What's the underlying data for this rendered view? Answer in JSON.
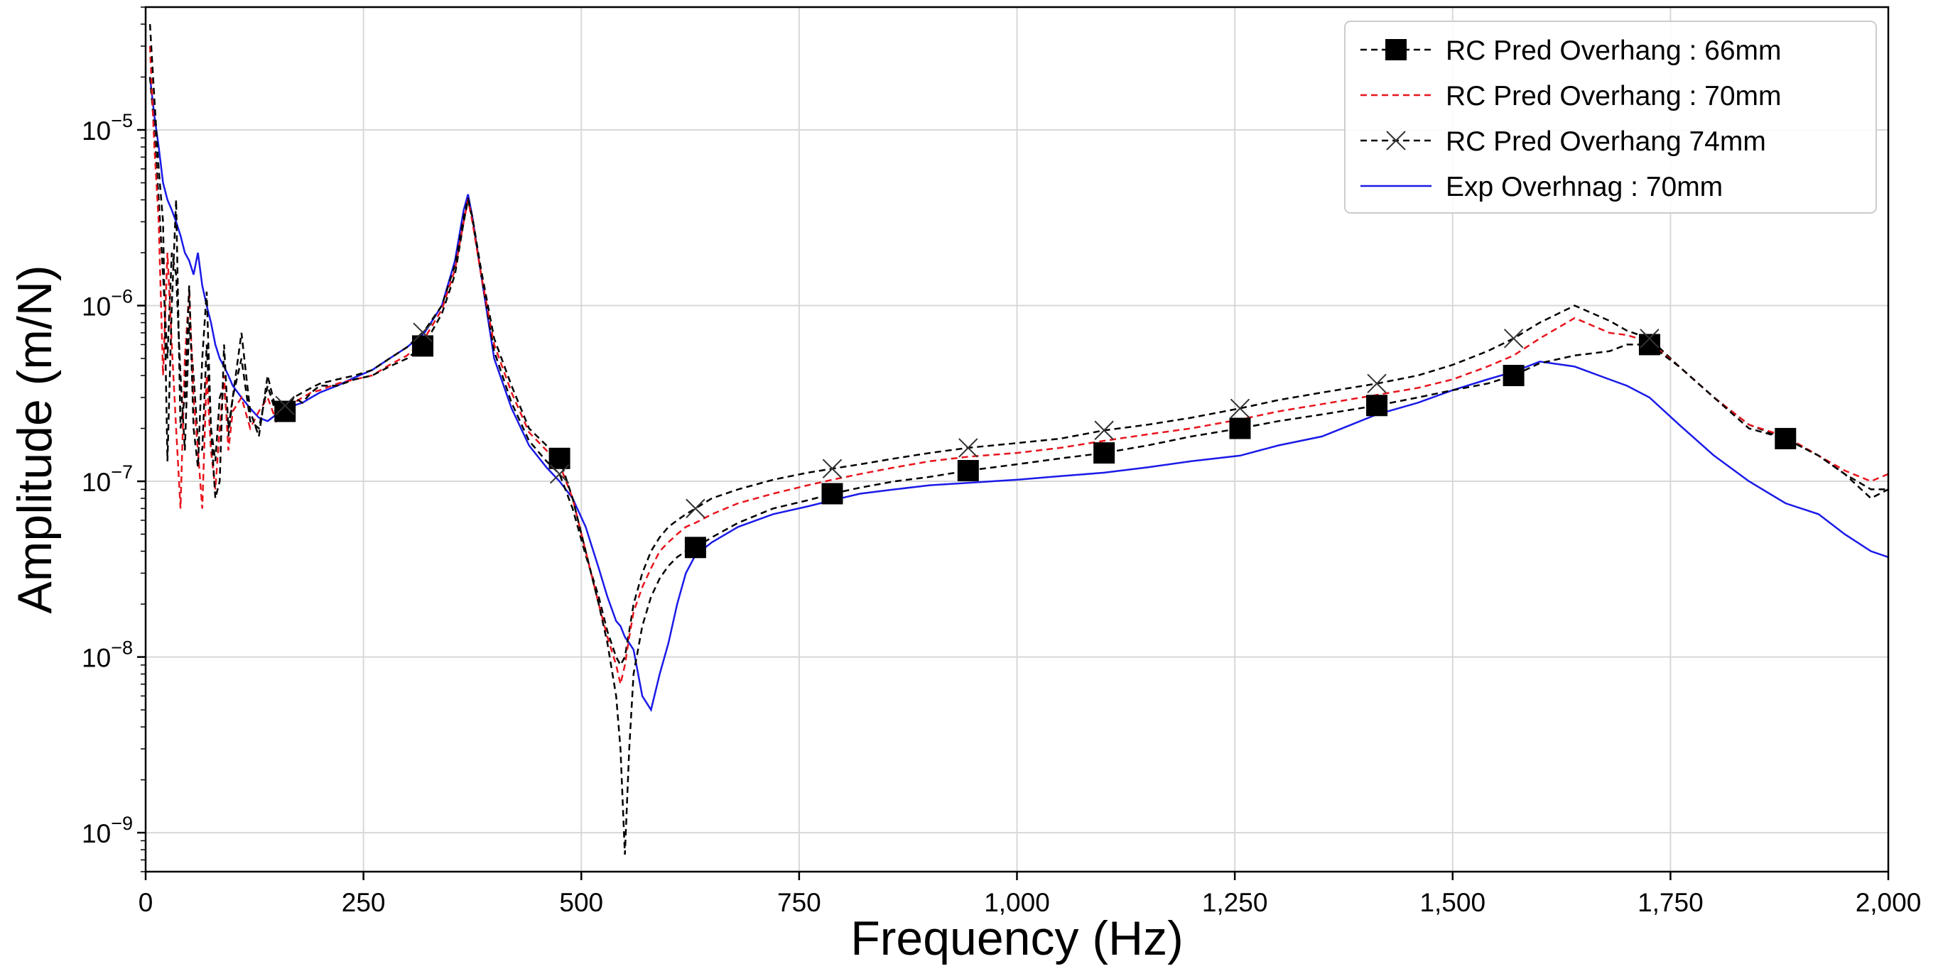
{
  "chart_data": {
    "type": "line",
    "xlabel": "Frequency (Hz)",
    "ylabel": "Amplitude (m/N)",
    "xlim": [
      0,
      2000
    ],
    "ylim": [
      6e-10,
      5e-05
    ],
    "yscale": "log",
    "grid": true,
    "legend_position": "top-right",
    "x_ticks": [
      {
        "value": 0,
        "label": "0"
      },
      {
        "value": 250,
        "label": "250"
      },
      {
        "value": 500,
        "label": "500"
      },
      {
        "value": 750,
        "label": "750"
      },
      {
        "value": 1000,
        "label": "1,000"
      },
      {
        "value": 1250,
        "label": "1,250"
      },
      {
        "value": 1500,
        "label": "1,500"
      },
      {
        "value": 1750,
        "label": "1,750"
      },
      {
        "value": 2000,
        "label": "2,000"
      }
    ],
    "y_ticks": [
      {
        "value": 1e-09,
        "base": "10",
        "exp": "−9"
      },
      {
        "value": 1e-08,
        "base": "10",
        "exp": "−8"
      },
      {
        "value": 1e-07,
        "base": "10",
        "exp": "−7"
      },
      {
        "value": 1e-06,
        "base": "10",
        "exp": "−6"
      },
      {
        "value": 1e-05,
        "base": "10",
        "exp": "−5"
      }
    ],
    "series": [
      {
        "name": "RC Pred Overhang : 66mm",
        "color": "#000000",
        "line_style": "dashed",
        "marker": "square",
        "markers_x": [
          160,
          318,
          475,
          631,
          788,
          944,
          1100,
          1256,
          1413,
          1570,
          1726,
          1882
        ],
        "x": [
          5,
          10,
          15,
          20,
          25,
          30,
          35,
          40,
          45,
          50,
          55,
          60,
          65,
          70,
          75,
          80,
          85,
          90,
          95,
          100,
          110,
          120,
          130,
          140,
          150,
          160,
          170,
          180,
          190,
          200,
          220,
          240,
          260,
          280,
          300,
          320,
          340,
          355,
          365,
          370,
          375,
          385,
          400,
          420,
          440,
          460,
          475,
          490,
          505,
          520,
          530,
          540,
          545,
          550,
          555,
          560,
          570,
          580,
          590,
          600,
          610,
          620,
          631,
          650,
          680,
          720,
          760,
          788,
          820,
          860,
          900,
          944,
          1000,
          1050,
          1100,
          1150,
          1200,
          1256,
          1300,
          1350,
          1413,
          1460,
          1500,
          1540,
          1570,
          1600,
          1640,
          1680,
          1700,
          1726,
          1760,
          1800,
          1840,
          1882,
          1920,
          1950,
          1980,
          2000
        ],
        "y": [
          4e-05,
          1.5e-05,
          6e-06,
          3e-06,
          1.3e-07,
          1e-06,
          4e-06,
          2e-07,
          3e-07,
          1.3e-06,
          2e-07,
          1.2e-07,
          5e-07,
          1.2e-06,
          2e-07,
          8e-08,
          1e-07,
          6e-07,
          2e-07,
          3e-07,
          7e-07,
          2.5e-07,
          1.8e-07,
          4e-07,
          2.5e-07,
          2.5e-07,
          3e-07,
          2.8e-07,
          3.2e-07,
          3.5e-07,
          3.5e-07,
          3.8e-07,
          4e-07,
          4.5e-07,
          5e-07,
          6e-07,
          9e-07,
          1.5e-06,
          3e-06,
          4e-06,
          3.2e-06,
          1.6e-06,
          6.5e-07,
          3.5e-07,
          2e-07,
          1.6e-07,
          1.35e-07,
          8e-08,
          4e-08,
          2e-08,
          1.2e-08,
          6e-09,
          3e-09,
          7.5e-10,
          3e-09,
          8e-09,
          1.5e-08,
          2.2e-08,
          2.8e-08,
          3.3e-08,
          3.7e-08,
          4e-08,
          4.2e-08,
          4.8e-08,
          5.8e-08,
          7e-08,
          7.8e-08,
          8.5e-08,
          9.2e-08,
          1e-07,
          1.06e-07,
          1.15e-07,
          1.25e-07,
          1.35e-07,
          1.45e-07,
          1.6e-07,
          1.8e-07,
          2e-07,
          2.2e-07,
          2.4e-07,
          2.7e-07,
          3e-07,
          3.3e-07,
          3.6e-07,
          4e-07,
          4.7e-07,
          5.2e-07,
          5.5e-07,
          6e-07,
          6e-07,
          4.5e-07,
          3e-07,
          2e-07,
          1.75e-07,
          1.4e-07,
          1.1e-07,
          9e-08,
          9e-08
        ]
      },
      {
        "name": "RC Pred Overhang : 70mm",
        "color": "#e8141c",
        "line_style": "dashed",
        "marker": "none",
        "x": [
          5,
          10,
          15,
          20,
          25,
          30,
          35,
          40,
          45,
          50,
          55,
          60,
          65,
          70,
          75,
          80,
          85,
          90,
          95,
          100,
          110,
          120,
          130,
          140,
          150,
          160,
          170,
          180,
          190,
          200,
          220,
          240,
          260,
          280,
          300,
          320,
          340,
          355,
          365,
          370,
          375,
          385,
          400,
          420,
          440,
          460,
          475,
          490,
          505,
          520,
          530,
          540,
          545,
          550,
          555,
          560,
          570,
          580,
          590,
          600,
          610,
          620,
          631,
          650,
          680,
          720,
          760,
          788,
          820,
          860,
          900,
          944,
          1000,
          1050,
          1100,
          1150,
          1200,
          1256,
          1300,
          1350,
          1413,
          1460,
          1500,
          1540,
          1570,
          1600,
          1640,
          1680,
          1700,
          1726,
          1760,
          1800,
          1840,
          1882,
          1920,
          1950,
          1980,
          2000
        ],
        "y": [
          3e-05,
          8e-06,
          3e-06,
          4e-07,
          2e-06,
          6e-07,
          2e-07,
          7e-08,
          5e-07,
          1.2e-06,
          3e-07,
          1.5e-07,
          7e-08,
          4e-07,
          1.5e-07,
          9e-08,
          2e-07,
          4e-07,
          1.5e-07,
          2.5e-07,
          3e-07,
          2e-07,
          2.5e-07,
          3e-07,
          2.2e-07,
          2.6e-07,
          2.8e-07,
          3e-07,
          3.2e-07,
          3.3e-07,
          3.6e-07,
          3.8e-07,
          4e-07,
          4.6e-07,
          5.2e-07,
          6.5e-07,
          9.5e-07,
          1.6e-06,
          3e-06,
          4e-06,
          3e-06,
          1.5e-06,
          6e-07,
          3.2e-07,
          1.9e-07,
          1.5e-07,
          1.25e-07,
          8e-08,
          4e-08,
          2e-08,
          1.3e-08,
          9e-09,
          7e-09,
          9e-09,
          1.3e-08,
          1.8e-08,
          2.5e-08,
          3.2e-08,
          4e-08,
          4.5e-08,
          5e-08,
          5.5e-08,
          5.8e-08,
          6.5e-08,
          7.5e-08,
          8.5e-08,
          9.5e-08,
          1.02e-07,
          1.1e-07,
          1.2e-07,
          1.3e-07,
          1.38e-07,
          1.45e-07,
          1.55e-07,
          1.7e-07,
          1.85e-07,
          2e-07,
          2.25e-07,
          2.5e-07,
          2.75e-07,
          3.1e-07,
          3.4e-07,
          3.8e-07,
          4.5e-07,
          5.2e-07,
          6.5e-07,
          8.5e-07,
          7e-07,
          6.8e-07,
          6.2e-07,
          4.5e-07,
          3e-07,
          2.1e-07,
          1.8e-07,
          1.4e-07,
          1.15e-07,
          1e-07,
          1.1e-07
        ]
      },
      {
        "name": "RC Pred Overhang 74mm",
        "color": "#000000",
        "line_style": "dashed",
        "marker": "x",
        "markers_x": [
          160,
          318,
          475,
          631,
          788,
          944,
          1100,
          1256,
          1413,
          1570,
          1726
        ],
        "x": [
          5,
          10,
          15,
          20,
          25,
          30,
          35,
          40,
          45,
          50,
          55,
          60,
          65,
          70,
          75,
          80,
          85,
          90,
          95,
          100,
          110,
          120,
          130,
          140,
          150,
          160,
          170,
          180,
          190,
          200,
          220,
          240,
          260,
          280,
          300,
          320,
          340,
          355,
          365,
          370,
          375,
          385,
          400,
          420,
          440,
          460,
          475,
          490,
          505,
          520,
          530,
          540,
          545,
          550,
          555,
          560,
          570,
          580,
          590,
          600,
          610,
          620,
          631,
          650,
          680,
          720,
          760,
          788,
          820,
          860,
          900,
          944,
          1000,
          1050,
          1100,
          1150,
          1200,
          1256,
          1300,
          1350,
          1413,
          1460,
          1500,
          1540,
          1570,
          1600,
          1640,
          1680,
          1700,
          1726,
          1760,
          1800,
          1840,
          1882,
          1920,
          1950,
          1980,
          2000
        ],
        "y": [
          2e-05,
          1e-05,
          4e-06,
          1.5e-06,
          5e-07,
          2e-06,
          1.5e-06,
          4e-07,
          1.5e-07,
          8e-07,
          4e-07,
          1.7e-07,
          1.5e-07,
          6e-07,
          2e-07,
          1.3e-07,
          3e-07,
          3.5e-07,
          1.8e-07,
          3e-07,
          5e-07,
          2.2e-07,
          2e-07,
          3.5e-07,
          2.4e-07,
          2.7e-07,
          3e-07,
          3.2e-07,
          3.4e-07,
          3.6e-07,
          3.8e-07,
          4e-07,
          4.3e-07,
          5e-07,
          5.8e-07,
          7.2e-07,
          1e-06,
          1.7e-06,
          3.2e-06,
          4.1e-06,
          3.1e-06,
          1.5e-06,
          5.5e-07,
          2.8e-07,
          1.7e-07,
          1.3e-07,
          1.1e-07,
          7e-08,
          3.8e-08,
          2.2e-08,
          1.4e-08,
          1e-08,
          9e-09,
          1e-08,
          1.4e-08,
          2e-08,
          3e-08,
          4e-08,
          4.8e-08,
          5.5e-08,
          6e-08,
          6.5e-08,
          7e-08,
          8e-08,
          9e-08,
          1.02e-07,
          1.12e-07,
          1.18e-07,
          1.25e-07,
          1.35e-07,
          1.45e-07,
          1.55e-07,
          1.65e-07,
          1.75e-07,
          1.95e-07,
          2.1e-07,
          2.3e-07,
          2.6e-07,
          2.9e-07,
          3.2e-07,
          3.6e-07,
          4e-07,
          4.6e-07,
          5.5e-07,
          6.5e-07,
          8e-07,
          1e-06,
          8.2e-07,
          7.2e-07,
          6.5e-07,
          4.5e-07,
          3e-07,
          2.1e-07,
          1.75e-07,
          1.4e-07,
          1.1e-07,
          8e-08,
          9e-08
        ]
      },
      {
        "name": "Exp Overhnag : 70mm",
        "color": "#1a1ae8",
        "line_style": "solid",
        "marker": "none",
        "x": [
          5,
          10,
          15,
          20,
          25,
          30,
          35,
          40,
          45,
          50,
          55,
          60,
          65,
          70,
          75,
          80,
          85,
          90,
          95,
          100,
          110,
          120,
          130,
          140,
          150,
          160,
          170,
          180,
          190,
          200,
          220,
          240,
          260,
          280,
          300,
          320,
          340,
          355,
          365,
          370,
          375,
          385,
          400,
          420,
          440,
          460,
          475,
          490,
          505,
          520,
          530,
          540,
          545,
          550,
          555,
          560,
          570,
          580,
          590,
          600,
          610,
          620,
          631,
          650,
          680,
          720,
          760,
          788,
          820,
          860,
          900,
          944,
          1000,
          1050,
          1100,
          1150,
          1200,
          1256,
          1300,
          1350,
          1413,
          1460,
          1500,
          1540,
          1570,
          1600,
          1640,
          1680,
          1700,
          1726,
          1760,
          1800,
          1840,
          1882,
          1920,
          1950,
          1980,
          2000
        ],
        "y": [
          2e-05,
          1.2e-05,
          8e-06,
          5e-06,
          4e-06,
          3.5e-06,
          3e-06,
          2.5e-06,
          2e-06,
          1.8e-06,
          1.5e-06,
          2e-06,
          1.3e-06,
          1e-06,
          8e-07,
          6e-07,
          5e-07,
          4.5e-07,
          4e-07,
          3.5e-07,
          3e-07,
          2.6e-07,
          2.3e-07,
          2.2e-07,
          2.4e-07,
          2.5e-07,
          2.7e-07,
          2.8e-07,
          3e-07,
          3.2e-07,
          3.5e-07,
          3.9e-07,
          4.3e-07,
          5e-07,
          5.8e-07,
          7e-07,
          1e-06,
          1.8e-06,
          3.5e-06,
          4.3e-06,
          3.2e-06,
          1.5e-06,
          5e-07,
          2.6e-07,
          1.6e-07,
          1.2e-07,
          1e-07,
          8e-08,
          5.5e-08,
          3.2e-08,
          2.2e-08,
          1.6e-08,
          1.5e-08,
          1.3e-08,
          1.2e-08,
          1.1e-08,
          6e-09,
          5e-09,
          8e-09,
          1.2e-08,
          2e-08,
          3e-08,
          3.8e-08,
          4.5e-08,
          5.5e-08,
          6.5e-08,
          7.2e-08,
          7.8e-08,
          8.5e-08,
          9e-08,
          9.5e-08,
          9.8e-08,
          1.02e-07,
          1.07e-07,
          1.12e-07,
          1.2e-07,
          1.3e-07,
          1.4e-07,
          1.6e-07,
          1.8e-07,
          2.4e-07,
          2.8e-07,
          3.3e-07,
          3.8e-07,
          4.2e-07,
          4.8e-07,
          4.5e-07,
          3.8e-07,
          3.5e-07,
          3e-07,
          2.1e-07,
          1.4e-07,
          1e-07,
          7.5e-08,
          6.5e-08,
          5e-08,
          4e-08,
          3.7e-08
        ]
      }
    ]
  }
}
